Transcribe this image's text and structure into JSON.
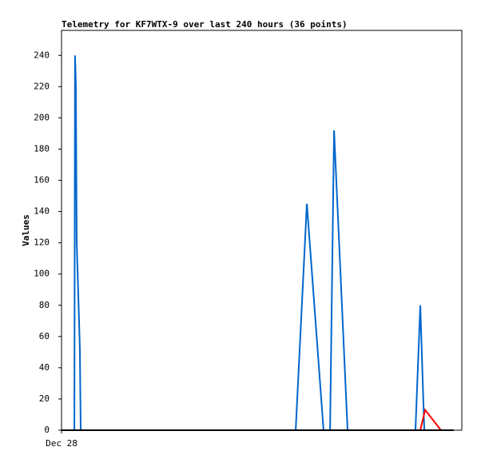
{
  "chart_data": {
    "type": "line",
    "title": "Telemetry for KF7WTX-9 over last 240 hours (36 points)",
    "y_label": "Values",
    "xlim": [
      0,
      240
    ],
    "xticks": [
      {
        "value": 0,
        "label": "Dec 28"
      }
    ],
    "ylim": [
      0,
      256
    ],
    "yticks": [
      0,
      20,
      40,
      60,
      80,
      100,
      120,
      140,
      160,
      180,
      200,
      220,
      240
    ],
    "series": [
      {
        "color": "#0066cc",
        "x": [
          7.7,
          8.1,
          8.6,
          9.1,
          10.1,
          11.0,
          11.5,
          140.4,
          147.1,
          157.1,
          161.0,
          163.4,
          171.5,
          212.2,
          215.1,
          217.5,
          235.2
        ],
        "values": [
          0,
          240,
          222,
          120,
          85,
          52,
          0,
          0,
          145,
          0,
          0,
          192,
          0,
          0,
          80,
          0,
          0
        ]
      },
      {
        "color": "#ff0000",
        "x": [
          215.1,
          218.0,
          227.5
        ],
        "values": [
          0,
          13,
          0
        ]
      },
      {
        "color": "#000000",
        "x": [
          0,
          235.2
        ],
        "values": [
          0,
          0
        ]
      }
    ]
  }
}
